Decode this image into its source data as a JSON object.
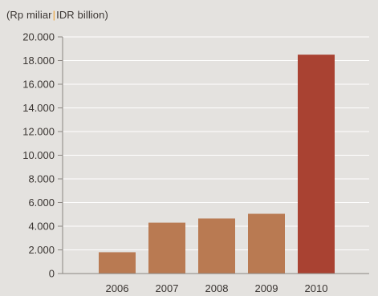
{
  "chart_data": {
    "type": "bar",
    "unit_label_id": "(Rp miliar",
    "unit_label_sep": "|",
    "unit_label_en": "IDR billion)",
    "categories": [
      "2006",
      "2007",
      "2008",
      "2009",
      "2010"
    ],
    "values": [
      1800,
      4300,
      4650,
      5050,
      18500
    ],
    "bar_colors": [
      "#b97a52",
      "#b97a52",
      "#b97a52",
      "#b97a52",
      "#a94232"
    ],
    "ylim": [
      0,
      20000
    ],
    "yticks": [
      0,
      2000,
      4000,
      6000,
      8000,
      10000,
      12000,
      14000,
      16000,
      18000,
      20000
    ],
    "ytick_labels": [
      "0",
      "2.000",
      "4.000",
      "6.000",
      "8.000",
      "10.000",
      "12.000",
      "14.000",
      "16.000",
      "18.000",
      "20.000"
    ],
    "grid": true,
    "grid_color": "#ffffff",
    "axis_color": "#8a8580"
  }
}
